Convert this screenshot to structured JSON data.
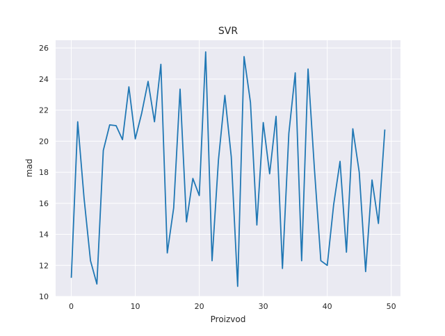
{
  "chart_data": {
    "type": "line",
    "title": "SVR",
    "xlabel": "Proizvod",
    "ylabel": "mad",
    "xlim": [
      -2.45,
      51.45
    ],
    "ylim": [
      10,
      26.5
    ],
    "xticks": [
      0,
      10,
      20,
      30,
      40,
      50
    ],
    "yticks": [
      10,
      12,
      14,
      16,
      18,
      20,
      22,
      24,
      26
    ],
    "grid": true,
    "background": "#eaeaf2",
    "series": [
      {
        "color": "#1f77b4",
        "x": [
          0,
          1,
          2,
          3,
          4,
          5,
          6,
          7,
          8,
          9,
          10,
          11,
          12,
          13,
          14,
          15,
          16,
          17,
          18,
          19,
          20,
          21,
          22,
          23,
          24,
          25,
          26,
          27,
          28,
          29,
          30,
          31,
          32,
          33,
          34,
          35,
          36,
          37,
          38,
          39,
          40,
          41,
          42,
          43,
          44,
          45,
          46,
          47,
          48,
          49
        ],
        "values": [
          11.2,
          21.25,
          16.3,
          12.3,
          10.8,
          19.4,
          21.05,
          21.0,
          20.1,
          23.5,
          20.15,
          21.8,
          23.85,
          21.25,
          24.95,
          12.8,
          15.7,
          23.35,
          14.8,
          17.6,
          16.5,
          25.75,
          12.3,
          18.8,
          22.95,
          19.0,
          10.65,
          25.45,
          22.5,
          14.6,
          21.2,
          17.9,
          21.6,
          11.8,
          20.5,
          24.4,
          12.3,
          24.65,
          18.2,
          12.3,
          12.0,
          15.9,
          18.7,
          12.85,
          20.8,
          18.0,
          11.6,
          17.5,
          14.7,
          20.75
        ]
      }
    ]
  }
}
